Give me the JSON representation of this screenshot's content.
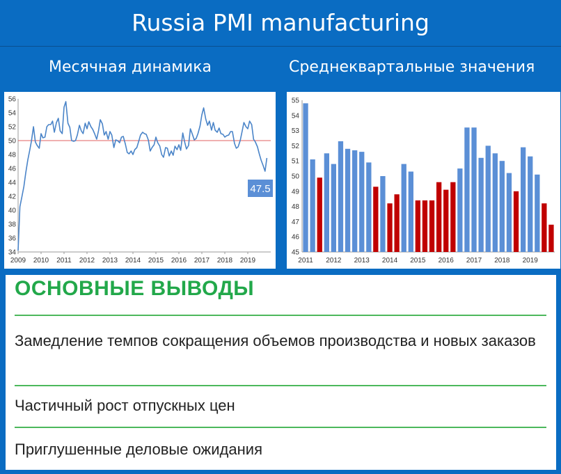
{
  "header": {
    "title": "Russia PMI manufacturing"
  },
  "subtitles": {
    "left": "Месячная динамика",
    "right": "Среднеквартальные значения"
  },
  "chart_data": [
    {
      "type": "line",
      "title": "",
      "ylim": [
        34,
        56
      ],
      "yticks": [
        34,
        36,
        38,
        40,
        42,
        44,
        46,
        48,
        50,
        52,
        54,
        56
      ],
      "xticks": [
        "2009",
        "2010",
        "2011",
        "2012",
        "2013",
        "2014",
        "2015",
        "2016",
        "2017",
        "2018",
        "2019"
      ],
      "xlim": [
        2009,
        2020
      ],
      "reference_line": 50,
      "reference_color": "#e06060",
      "line_color": "#4a84c8",
      "last_label": "47.5",
      "series": [
        {
          "x": [
            2009.0,
            2009.08,
            2009.17,
            2009.25,
            2009.33,
            2009.42,
            2009.5,
            2009.58,
            2009.67,
            2009.75,
            2009.83,
            2009.92,
            2010.0,
            2010.08,
            2010.17,
            2010.25,
            2010.33,
            2010.42,
            2010.5,
            2010.58,
            2010.67,
            2010.75,
            2010.83,
            2010.92,
            2011.0,
            2011.08,
            2011.17,
            2011.25,
            2011.33,
            2011.42,
            2011.5,
            2011.58,
            2011.67,
            2011.75,
            2011.83,
            2011.92,
            2012.0,
            2012.08,
            2012.17,
            2012.25,
            2012.33,
            2012.42,
            2012.5,
            2012.58,
            2012.67,
            2012.75,
            2012.83,
            2012.92,
            2013.0,
            2013.08,
            2013.17,
            2013.25,
            2013.33,
            2013.42,
            2013.5,
            2013.58,
            2013.67,
            2013.75,
            2013.83,
            2013.92,
            2014.0,
            2014.08,
            2014.17,
            2014.25,
            2014.33,
            2014.42,
            2014.5,
            2014.58,
            2014.67,
            2014.75,
            2014.83,
            2014.92,
            2015.0,
            2015.08,
            2015.17,
            2015.25,
            2015.33,
            2015.42,
            2015.5,
            2015.58,
            2015.67,
            2015.75,
            2015.83,
            2015.92,
            2016.0,
            2016.08,
            2016.17,
            2016.25,
            2016.33,
            2016.42,
            2016.5,
            2016.58,
            2016.67,
            2016.75,
            2016.83,
            2016.92,
            2017.0,
            2017.08,
            2017.17,
            2017.25,
            2017.33,
            2017.42,
            2017.5,
            2017.58,
            2017.67,
            2017.75,
            2017.83,
            2017.92,
            2018.0,
            2018.08,
            2018.17,
            2018.25,
            2018.33,
            2018.42,
            2018.5,
            2018.58,
            2018.67,
            2018.75,
            2018.83,
            2018.92,
            2019.0,
            2019.08,
            2019.17,
            2019.25,
            2019.33,
            2019.42,
            2019.5,
            2019.58,
            2019.67,
            2019.75,
            2019.83
          ],
          "values": [
            34.2,
            40.5,
            42.0,
            43.4,
            45.3,
            47.2,
            48.5,
            49.9,
            52.0,
            49.8,
            49.3,
            48.9,
            51.0,
            50.4,
            50.5,
            52.0,
            52.3,
            52.3,
            52.8,
            51.2,
            52.6,
            53.2,
            51.4,
            51.0,
            54.8,
            55.6,
            52.5,
            51.9,
            50.0,
            49.9,
            50.0,
            50.8,
            52.2,
            51.4,
            51.0,
            52.5,
            51.7,
            52.7,
            52.0,
            51.6,
            51.0,
            50.2,
            51.4,
            53.0,
            52.4,
            50.8,
            51.3,
            50.2,
            51.3,
            50.8,
            49.0,
            50.1,
            50.0,
            49.7,
            50.5,
            50.6,
            49.5,
            48.3,
            48.1,
            48.5,
            48.0,
            48.7,
            49.0,
            49.9,
            50.8,
            51.2,
            51.0,
            50.9,
            50.1,
            48.5,
            49.0,
            49.4,
            50.5,
            49.7,
            49.2,
            48.0,
            47.6,
            49.0,
            48.9,
            47.8,
            48.5,
            47.9,
            49.2,
            48.7,
            49.4,
            48.6,
            51.1,
            49.8,
            48.8,
            49.3,
            51.7,
            51.0,
            50.1,
            50.3,
            51.0,
            52.1,
            53.7,
            54.7,
            53.1,
            52.2,
            52.8,
            51.5,
            52.6,
            51.5,
            51.2,
            51.8,
            51.0,
            50.9,
            50.5,
            50.7,
            50.8,
            51.3,
            51.3,
            49.6,
            48.9,
            49.1,
            50.0,
            51.3,
            52.6,
            52.0,
            51.7,
            52.8,
            52.3,
            50.2,
            49.8,
            49.1,
            48.1,
            47.2,
            46.4,
            45.6,
            47.5
          ]
        }
      ]
    },
    {
      "type": "bar",
      "title": "",
      "ylim": [
        45,
        55
      ],
      "yticks": [
        45,
        46,
        47,
        48,
        49,
        50,
        51,
        52,
        53,
        54,
        55
      ],
      "xticks": [
        "2011",
        "2012",
        "2013",
        "2014",
        "2015",
        "2016",
        "2017",
        "2018",
        "2019"
      ],
      "reference_line": 50,
      "positive_color": "#5b8fd6",
      "negative_color": "#c00000",
      "values": [
        54.8,
        51.1,
        49.9,
        51.5,
        50.8,
        52.3,
        51.8,
        51.7,
        51.6,
        50.9,
        49.3,
        50.0,
        48.2,
        48.8,
        50.8,
        50.3,
        48.4,
        48.4,
        48.4,
        49.6,
        49.1,
        49.6,
        50.5,
        53.2,
        53.2,
        51.2,
        52.0,
        51.5,
        51.0,
        50.2,
        49.0,
        51.9,
        51.3,
        50.1,
        48.2,
        46.8
      ]
    }
  ],
  "conclusions": {
    "title": "ОСНОВНЫЕ ВЫВОДЫ",
    "items": [
      "Замедление темпов сокращения объемов производства и новых заказов",
      "Частичный рост отпускных цен",
      "Приглушенные деловые ожидания"
    ]
  }
}
